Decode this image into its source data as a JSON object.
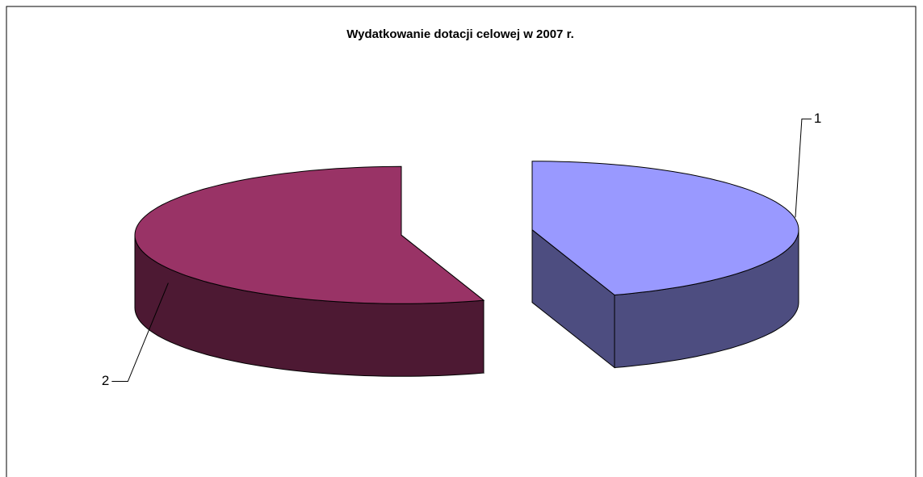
{
  "chart_data": {
    "type": "pie",
    "title": "Wydatkowanie dotacji celowej w 2007 r.",
    "categories": [
      "1",
      "2"
    ],
    "values": [
      45,
      55
    ],
    "colors": [
      "#9999ff",
      "#993366"
    ],
    "side_colors": [
      "#4d4d80",
      "#4d1933"
    ]
  }
}
